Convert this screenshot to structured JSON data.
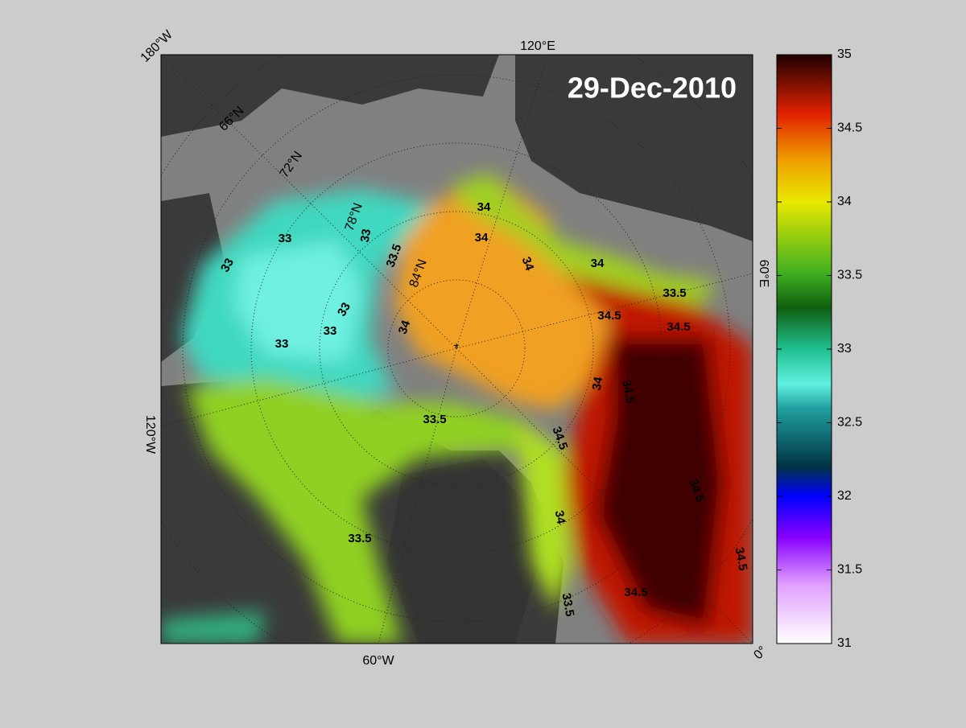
{
  "map": {
    "date": "29-Dec-2010",
    "meridian_labels": [
      "180°W",
      "120°E",
      "60°E",
      "0°",
      "60°W",
      "120°W"
    ],
    "parallel_labels": [
      "66°N",
      "72°N",
      "78°N",
      "84°N"
    ],
    "contour_labels": [
      34,
      34,
      33,
      33,
      33.5,
      33,
      34,
      34,
      33.5,
      33,
      33,
      34,
      34.5,
      34.5,
      33,
      34,
      34.5,
      33.5,
      34.5,
      34.5,
      34,
      33.5,
      34.5,
      34.5,
      33.5
    ]
  },
  "colorbar": {
    "lim": [
      31,
      35
    ],
    "ticks": [
      31,
      31.5,
      32,
      32.5,
      33,
      33.5,
      34,
      34.5,
      35
    ]
  }
}
